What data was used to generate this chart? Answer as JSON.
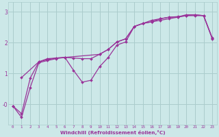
{
  "xlabel": "Windchill (Refroidissement éolien,°C)",
  "bg_color": "#cce8e8",
  "grid_color": "#aacccc",
  "line_color": "#993399",
  "xlim": [
    -0.5,
    23.5
  ],
  "ylim": [
    -0.65,
    3.3
  ],
  "yticks": [
    0,
    1,
    2,
    3
  ],
  "ytick_labels": [
    "-0",
    "1",
    "2",
    "3"
  ],
  "xtick_labels": [
    "0",
    "1",
    "2",
    "3",
    "4",
    "5",
    "6",
    "7",
    "8",
    "9",
    "10",
    "11",
    "12",
    "13",
    "14",
    "15",
    "16",
    "17",
    "18",
    "19",
    "20",
    "21",
    "22",
    "23"
  ],
  "curve1_x": [
    0,
    1,
    2,
    3,
    4,
    5,
    6,
    7,
    8,
    9,
    10,
    11,
    12,
    13,
    14,
    15,
    16,
    17,
    18,
    19,
    20,
    21,
    22,
    23
  ],
  "curve1_y": [
    -0.05,
    -0.42,
    0.55,
    1.35,
    1.42,
    1.48,
    1.52,
    1.1,
    0.72,
    0.78,
    1.22,
    1.52,
    1.92,
    2.02,
    2.52,
    2.62,
    2.67,
    2.72,
    2.77,
    2.82,
    2.87,
    2.87,
    2.87,
    2.12
  ],
  "curve2_x": [
    1,
    3,
    4,
    5,
    6,
    10,
    11,
    12,
    13,
    14,
    15,
    16,
    17,
    18,
    19,
    20,
    21,
    22,
    23
  ],
  "curve2_y": [
    0.87,
    1.38,
    1.48,
    1.5,
    1.52,
    1.62,
    1.78,
    2.02,
    2.12,
    2.52,
    2.62,
    2.72,
    2.77,
    2.82,
    2.83,
    2.9,
    2.9,
    2.87,
    2.15
  ],
  "curve3_x": [
    0,
    1,
    2,
    3,
    4,
    5,
    6,
    7,
    8,
    9,
    10,
    11,
    12,
    13,
    14,
    15,
    16,
    17,
    18,
    19,
    20,
    21,
    22,
    23
  ],
  "curve3_y": [
    -0.05,
    -0.3,
    0.85,
    1.38,
    1.45,
    1.5,
    1.52,
    1.5,
    1.48,
    1.48,
    1.62,
    1.78,
    2.02,
    2.12,
    2.52,
    2.62,
    2.67,
    2.77,
    2.82,
    2.84,
    2.87,
    2.9,
    2.87,
    2.13
  ],
  "marker": "D",
  "markersize": 2.0,
  "linewidth": 0.9
}
